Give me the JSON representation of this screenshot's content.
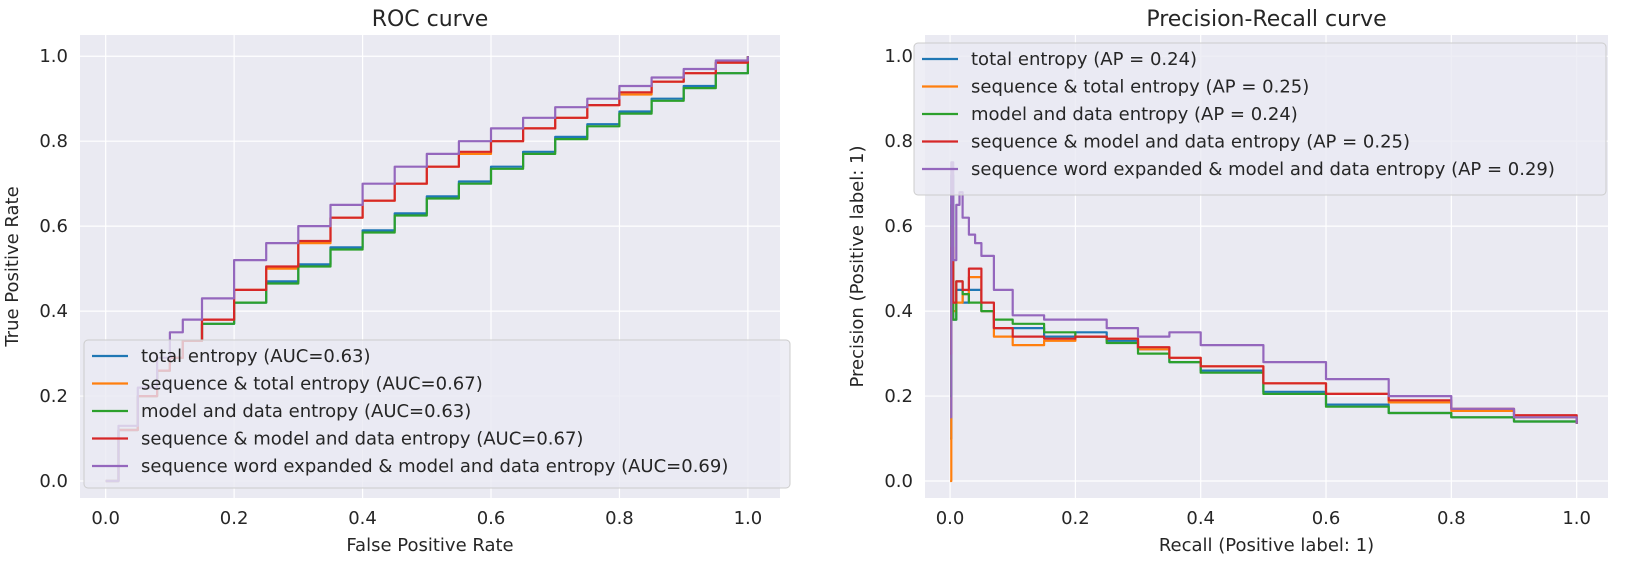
{
  "chart_data": [
    {
      "type": "line",
      "title": "ROC curve",
      "xlabel": "False Positive Rate",
      "ylabel": "True Positive Rate",
      "xlim": [
        -0.04,
        1.05
      ],
      "ylim": [
        -0.04,
        1.05
      ],
      "xticks": [
        0.0,
        0.2,
        0.4,
        0.6,
        0.8,
        1.0
      ],
      "yticks": [
        0.0,
        0.2,
        0.4,
        0.6,
        0.8,
        1.0
      ],
      "xtick_labels": [
        "0.0",
        "0.2",
        "0.4",
        "0.6",
        "0.8",
        "1.0"
      ],
      "ytick_labels": [
        "0.0",
        "0.2",
        "0.4",
        "0.6",
        "0.8",
        "1.0"
      ],
      "grid": true,
      "legend_position": "lower-right",
      "series": [
        {
          "name": "total entropy (AUC=0.63)",
          "color": "#1f77b4",
          "x": [
            0,
            0.02,
            0.05,
            0.08,
            0.1,
            0.12,
            0.15,
            0.2,
            0.25,
            0.3,
            0.35,
            0.4,
            0.45,
            0.5,
            0.55,
            0.6,
            0.65,
            0.7,
            0.75,
            0.8,
            0.85,
            0.9,
            0.95,
            1.0
          ],
          "y": [
            0,
            0.12,
            0.2,
            0.26,
            0.29,
            0.33,
            0.37,
            0.42,
            0.47,
            0.51,
            0.55,
            0.59,
            0.63,
            0.67,
            0.705,
            0.74,
            0.775,
            0.81,
            0.84,
            0.87,
            0.9,
            0.93,
            0.96,
            1.0
          ]
        },
        {
          "name": "sequence & total entropy (AUC=0.67)",
          "color": "#ff7f0e",
          "x": [
            0,
            0.02,
            0.05,
            0.08,
            0.1,
            0.12,
            0.15,
            0.2,
            0.25,
            0.3,
            0.35,
            0.4,
            0.45,
            0.5,
            0.55,
            0.6,
            0.65,
            0.7,
            0.75,
            0.8,
            0.85,
            0.9,
            0.95,
            1.0
          ],
          "y": [
            0,
            0.12,
            0.2,
            0.26,
            0.29,
            0.33,
            0.38,
            0.45,
            0.5,
            0.56,
            0.62,
            0.66,
            0.7,
            0.74,
            0.77,
            0.8,
            0.83,
            0.855,
            0.885,
            0.91,
            0.94,
            0.96,
            0.985,
            1.0
          ]
        },
        {
          "name": "model and data entropy (AUC=0.63)",
          "color": "#2ca02c",
          "x": [
            0,
            0.02,
            0.05,
            0.08,
            0.1,
            0.12,
            0.15,
            0.2,
            0.25,
            0.3,
            0.35,
            0.4,
            0.45,
            0.5,
            0.55,
            0.6,
            0.65,
            0.7,
            0.75,
            0.8,
            0.85,
            0.9,
            0.95,
            1.0
          ],
          "y": [
            0,
            0.12,
            0.2,
            0.26,
            0.29,
            0.33,
            0.37,
            0.42,
            0.465,
            0.505,
            0.545,
            0.585,
            0.625,
            0.665,
            0.7,
            0.735,
            0.77,
            0.805,
            0.835,
            0.865,
            0.895,
            0.925,
            0.96,
            1.0
          ]
        },
        {
          "name": "sequence & model and data entropy (AUC=0.67)",
          "color": "#d62728",
          "x": [
            0,
            0.02,
            0.05,
            0.08,
            0.1,
            0.12,
            0.15,
            0.2,
            0.25,
            0.3,
            0.35,
            0.4,
            0.45,
            0.5,
            0.55,
            0.6,
            0.65,
            0.7,
            0.75,
            0.8,
            0.85,
            0.9,
            0.95,
            1.0
          ],
          "y": [
            0,
            0.12,
            0.2,
            0.26,
            0.29,
            0.33,
            0.38,
            0.45,
            0.505,
            0.565,
            0.62,
            0.66,
            0.7,
            0.74,
            0.775,
            0.8,
            0.83,
            0.855,
            0.885,
            0.915,
            0.94,
            0.96,
            0.985,
            1.0
          ]
        },
        {
          "name": "sequence word expanded & model and data entropy (AUC=0.69)",
          "color": "#9467bd",
          "x": [
            0,
            0.02,
            0.05,
            0.08,
            0.1,
            0.12,
            0.15,
            0.2,
            0.25,
            0.3,
            0.35,
            0.4,
            0.45,
            0.5,
            0.55,
            0.6,
            0.65,
            0.7,
            0.75,
            0.8,
            0.85,
            0.9,
            0.95,
            1.0
          ],
          "y": [
            0,
            0.13,
            0.22,
            0.29,
            0.35,
            0.38,
            0.43,
            0.52,
            0.56,
            0.6,
            0.65,
            0.7,
            0.74,
            0.77,
            0.8,
            0.83,
            0.855,
            0.88,
            0.9,
            0.93,
            0.95,
            0.97,
            0.99,
            1.0
          ]
        }
      ]
    },
    {
      "type": "line",
      "title": "Precision-Recall curve",
      "xlabel": "Recall (Positive label: 1)",
      "ylabel": "Precision (Positive label: 1)",
      "xlim": [
        -0.04,
        1.05
      ],
      "ylim": [
        -0.04,
        1.05
      ],
      "xticks": [
        0.0,
        0.2,
        0.4,
        0.6,
        0.8,
        1.0
      ],
      "yticks": [
        0.0,
        0.2,
        0.4,
        0.6,
        0.8,
        1.0
      ],
      "xtick_labels": [
        "0.0",
        "0.2",
        "0.4",
        "0.6",
        "0.8",
        "1.0"
      ],
      "ytick_labels": [
        "0.0",
        "0.2",
        "0.4",
        "0.6",
        "0.8",
        "1.0"
      ],
      "grid": true,
      "legend_position": "upper-right",
      "series": [
        {
          "name": "total entropy (AP = 0.24)",
          "color": "#1f77b4",
          "x": [
            0,
            0.002,
            0.005,
            0.01,
            0.02,
            0.03,
            0.05,
            0.07,
            0.1,
            0.15,
            0.2,
            0.25,
            0.3,
            0.35,
            0.4,
            0.5,
            0.6,
            0.7,
            0.8,
            0.9,
            1.0
          ],
          "y": [
            0.1,
            0.72,
            0.38,
            0.45,
            0.42,
            0.45,
            0.4,
            0.36,
            0.36,
            0.34,
            0.35,
            0.33,
            0.31,
            0.28,
            0.26,
            0.21,
            0.18,
            0.16,
            0.15,
            0.14,
            0.135
          ]
        },
        {
          "name": "sequence & total entropy (AP = 0.25)",
          "color": "#ff7f0e",
          "x": [
            0,
            0.002,
            0.005,
            0.01,
            0.02,
            0.03,
            0.05,
            0.07,
            0.1,
            0.15,
            0.2,
            0.25,
            0.3,
            0.35,
            0.4,
            0.5,
            0.6,
            0.7,
            0.8,
            0.9,
            1.0
          ],
          "y": [
            0.0,
            0.6,
            0.4,
            0.42,
            0.44,
            0.48,
            0.4,
            0.34,
            0.32,
            0.33,
            0.34,
            0.335,
            0.31,
            0.29,
            0.27,
            0.23,
            0.205,
            0.185,
            0.165,
            0.15,
            0.135
          ]
        },
        {
          "name": "model and data entropy (AP = 0.24)",
          "color": "#2ca02c",
          "x": [
            0,
            0.002,
            0.005,
            0.01,
            0.02,
            0.03,
            0.05,
            0.07,
            0.1,
            0.15,
            0.2,
            0.25,
            0.3,
            0.35,
            0.4,
            0.5,
            0.6,
            0.7,
            0.8,
            0.9,
            1.0
          ],
          "y": [
            0.2,
            0.65,
            0.38,
            0.47,
            0.44,
            0.42,
            0.4,
            0.38,
            0.37,
            0.35,
            0.34,
            0.325,
            0.3,
            0.28,
            0.255,
            0.205,
            0.175,
            0.16,
            0.15,
            0.14,
            0.135
          ]
        },
        {
          "name": "sequence & model and data entropy (AP = 0.25)",
          "color": "#d62728",
          "x": [
            0,
            0.002,
            0.005,
            0.01,
            0.02,
            0.03,
            0.05,
            0.07,
            0.1,
            0.15,
            0.2,
            0.25,
            0.3,
            0.35,
            0.4,
            0.5,
            0.6,
            0.7,
            0.8,
            0.9,
            1.0
          ],
          "y": [
            0.3,
            0.55,
            0.42,
            0.47,
            0.45,
            0.5,
            0.42,
            0.36,
            0.34,
            0.335,
            0.34,
            0.335,
            0.315,
            0.29,
            0.27,
            0.23,
            0.205,
            0.19,
            0.17,
            0.155,
            0.135
          ]
        },
        {
          "name": "sequence word expanded & model and data entropy (AP = 0.29)",
          "color": "#9467bd",
          "x": [
            0,
            0.002,
            0.005,
            0.01,
            0.015,
            0.02,
            0.03,
            0.04,
            0.05,
            0.07,
            0.1,
            0.15,
            0.2,
            0.25,
            0.3,
            0.35,
            0.4,
            0.5,
            0.6,
            0.7,
            0.8,
            0.9,
            1.0
          ],
          "y": [
            0.15,
            0.75,
            0.52,
            0.65,
            0.68,
            0.62,
            0.58,
            0.56,
            0.53,
            0.45,
            0.39,
            0.38,
            0.38,
            0.36,
            0.34,
            0.35,
            0.32,
            0.28,
            0.24,
            0.2,
            0.17,
            0.15,
            0.135
          ]
        }
      ]
    }
  ]
}
